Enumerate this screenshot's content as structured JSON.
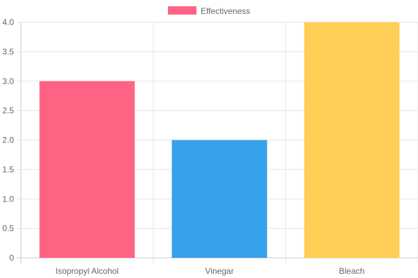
{
  "chart_data": {
    "type": "bar",
    "categories": [
      "Isopropyl Alcohol",
      "Vinegar",
      "Bleach"
    ],
    "series": [
      {
        "name": "Effectiveness",
        "values": [
          3,
          2,
          4
        ]
      }
    ],
    "bar_colors": [
      "#ff6384",
      "#36a2eb",
      "#ffce56"
    ],
    "legend_color": "#ff6384",
    "ylim": [
      0,
      4
    ],
    "y_ticks": [
      "0",
      "0.5",
      "1.0",
      "1.5",
      "2.0",
      "2.5",
      "3.0",
      "3.5",
      "4.0"
    ],
    "grid": true,
    "legend_position": "top-center"
  }
}
